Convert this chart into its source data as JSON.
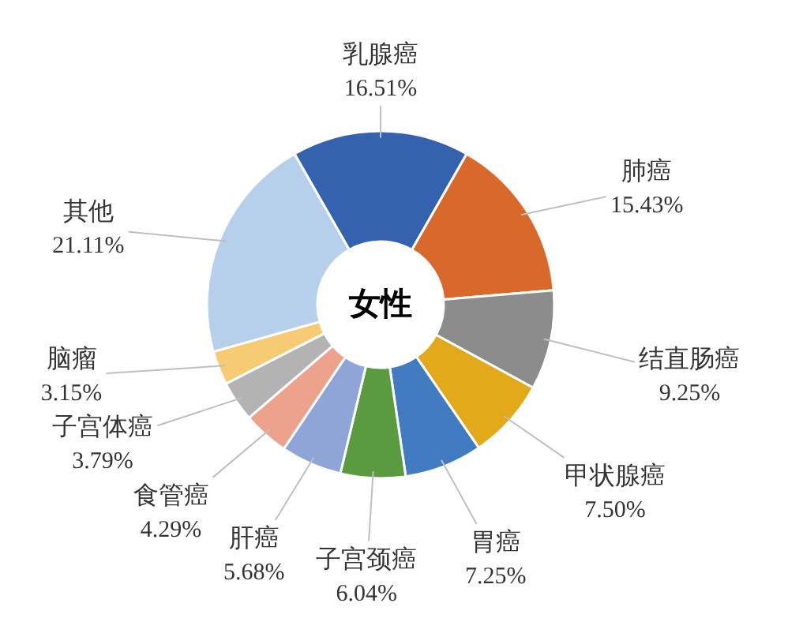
{
  "chart_data": {
    "type": "donut",
    "title": "女性",
    "categories": [
      "乳腺癌",
      "肺癌",
      "结直肠癌",
      "甲状腺癌",
      "胃癌",
      "子宫颈癌",
      "肝癌",
      "食管癌",
      "子宫体癌",
      "脑瘤",
      "其他"
    ],
    "values": [
      16.51,
      15.43,
      9.25,
      7.5,
      7.25,
      6.04,
      5.68,
      4.29,
      3.79,
      3.15,
      21.11
    ],
    "colors": [
      "#3562ae",
      "#d8692b",
      "#8c8c8c",
      "#e2aa1a",
      "#417cc3",
      "#5b9b3f",
      "#8fa5d8",
      "#eda28b",
      "#b3b3b3",
      "#f7ca74",
      "#b6d0ec"
    ],
    "value_labels": [
      "16.51%",
      "15.43%",
      "9.25%",
      "7.50%",
      "7.25%",
      "6.04%",
      "5.68%",
      "4.29%",
      "3.79%",
      "3.15%",
      "21.11%"
    ]
  }
}
